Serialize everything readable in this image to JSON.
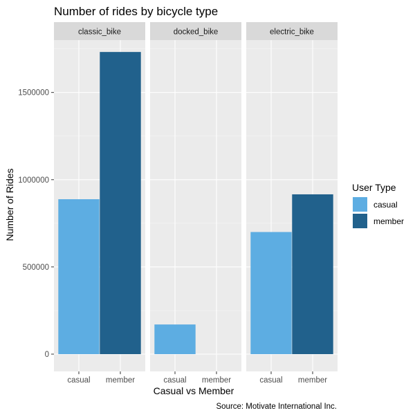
{
  "chart_data": {
    "type": "bar",
    "title": "Number of rides by bicycle type",
    "xlabel": "Casual vs Member",
    "ylabel": "Number of Rides",
    "caption": "Source: Motivate International Inc.",
    "ylim": [
      0,
      1800000
    ],
    "yticks": [
      0,
      500000,
      1000000,
      1500000
    ],
    "ytick_labels": [
      "0",
      "500000",
      "1000000",
      "1500000"
    ],
    "grid": true,
    "categories": [
      "casual",
      "member"
    ],
    "facets": [
      {
        "name": "classic_bike",
        "values": [
          888000,
          1732000
        ]
      },
      {
        "name": "docked_bike",
        "values": [
          170000,
          0
        ]
      },
      {
        "name": "electric_bike",
        "values": [
          700000,
          916000
        ]
      }
    ],
    "legend": {
      "title": "User Type",
      "placement": "right",
      "entries": [
        {
          "label": "casual",
          "color": "#5DADE2"
        },
        {
          "label": "member",
          "color": "#21618C"
        }
      ]
    },
    "colors": {
      "panel_bg": "#EBEBEB",
      "strip_bg": "#D9D9D9",
      "grid_major": "#FFFFFF"
    }
  }
}
